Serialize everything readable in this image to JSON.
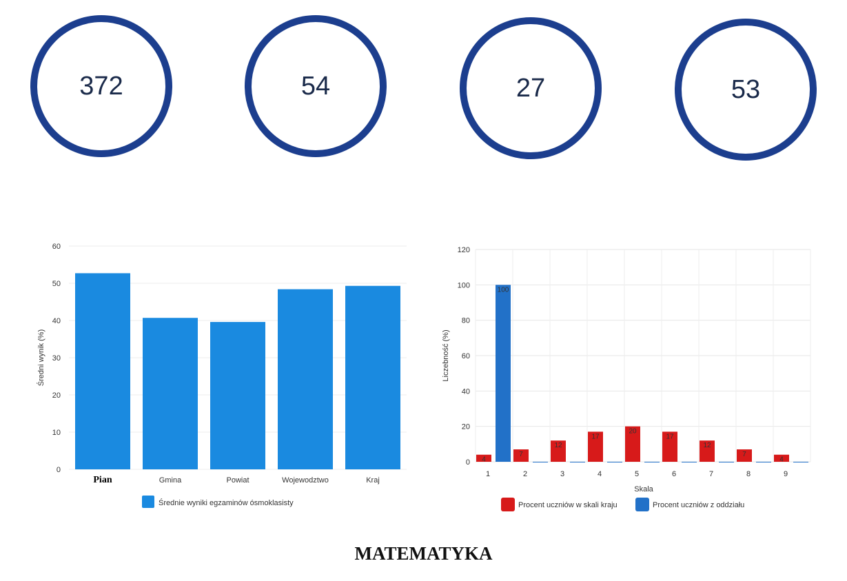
{
  "kpis": [
    {
      "value": "372"
    },
    {
      "value": "54"
    },
    {
      "value": "27"
    },
    {
      "value": "53"
    }
  ],
  "colors": {
    "ring": "#1c3e8e",
    "bar_blue": "#1a8ae0",
    "series_red": "#d71a1a",
    "series_blue": "#2271c8"
  },
  "chart_data": [
    {
      "type": "bar",
      "categories": [
        "Pian",
        "Gmina",
        "Powiat",
        "Wojewodztwo",
        "Kraj"
      ],
      "values": [
        52.7,
        40.7,
        39.6,
        48.4,
        49.3
      ],
      "ylabel": "Średni wynik (%)",
      "xlabel": "",
      "ylim": [
        0,
        60
      ],
      "yticks": [
        0,
        10,
        20,
        30,
        40,
        50,
        60
      ],
      "legend": [
        "Średnie wyniki egzaminów ósmoklasisty"
      ],
      "legend_position": "bottom",
      "grid": true
    },
    {
      "type": "bar",
      "categories": [
        "1",
        "2",
        "3",
        "4",
        "5",
        "6",
        "7",
        "8",
        "9"
      ],
      "series": [
        {
          "name": "Procent uczniów w skali kraju",
          "values": [
            4,
            7,
            12,
            17,
            20,
            17,
            12,
            7,
            4
          ]
        },
        {
          "name": "Procent uczniów z oddziału",
          "values": [
            100,
            0,
            0,
            0,
            0,
            0,
            0,
            0,
            0
          ]
        }
      ],
      "ylabel": "Liczebność (%)",
      "xlabel": "Skala",
      "ylim": [
        0,
        120
      ],
      "yticks": [
        0,
        20,
        40,
        60,
        80,
        100,
        120
      ],
      "legend_position": "bottom",
      "grid": true
    }
  ],
  "footer": {
    "title": "MATEMATYKA"
  }
}
